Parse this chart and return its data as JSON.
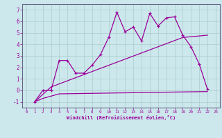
{
  "xlabel": "Windchill (Refroidissement éolien,°C)",
  "background_color": "#cce8ec",
  "grid_color": "#aacccc",
  "line_color": "#990099",
  "xlim": [
    -0.5,
    23.5
  ],
  "ylim": [
    -1.5,
    7.5
  ],
  "xticks": [
    0,
    1,
    2,
    3,
    4,
    5,
    6,
    7,
    8,
    9,
    10,
    11,
    12,
    13,
    14,
    15,
    16,
    17,
    18,
    19,
    20,
    21,
    22,
    23
  ],
  "yticks": [
    -1,
    0,
    1,
    2,
    3,
    4,
    5,
    6,
    7
  ],
  "line1_x": [
    1,
    2,
    3,
    4,
    5,
    6,
    7,
    8,
    9,
    10,
    11,
    12,
    13,
    14,
    15,
    16,
    17,
    18,
    19,
    20,
    21,
    22
  ],
  "line1_y": [
    -1.0,
    0.0,
    0.0,
    2.6,
    2.6,
    1.5,
    1.5,
    2.2,
    3.1,
    4.6,
    6.8,
    5.1,
    5.5,
    4.3,
    6.7,
    5.6,
    6.3,
    6.4,
    4.8,
    3.8,
    2.3,
    0.1
  ],
  "line2_x": [
    1,
    2,
    3,
    4,
    22
  ],
  "line2_y": [
    -1.0,
    -0.7,
    -0.5,
    -0.3,
    -0.1
  ],
  "line3_x": [
    1,
    3,
    19,
    22
  ],
  "line3_y": [
    -1.0,
    0.3,
    4.6,
    4.8
  ]
}
